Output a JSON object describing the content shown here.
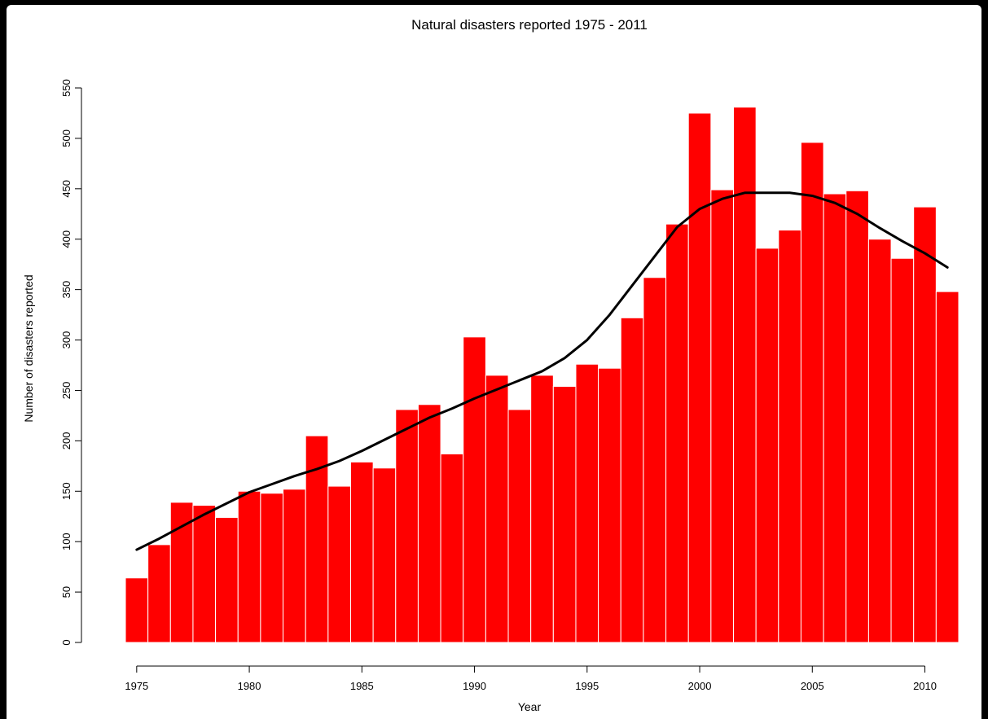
{
  "chart_data": {
    "type": "bar",
    "title": "Natural disasters reported 1975 - 2011",
    "xlabel": "Year",
    "ylabel": "Number of disasters reported",
    "x_ticks": [
      "1975",
      "1980",
      "1985",
      "1990",
      "1995",
      "2000",
      "2005",
      "2010"
    ],
    "y_ticks": [
      "0",
      "50",
      "100",
      "150",
      "200",
      "250",
      "300",
      "350",
      "400",
      "450",
      "500",
      "550"
    ],
    "xlim": [
      1974.5,
      2011.5
    ],
    "ylim": [
      0,
      550
    ],
    "grid": false,
    "bar_color": "#ff0000",
    "line_color": "#000000",
    "categories": [
      1975,
      1976,
      1977,
      1978,
      1979,
      1980,
      1981,
      1982,
      1983,
      1984,
      1985,
      1986,
      1987,
      1988,
      1989,
      1990,
      1991,
      1992,
      1993,
      1994,
      1995,
      1996,
      1997,
      1998,
      1999,
      2000,
      2001,
      2002,
      2003,
      2004,
      2005,
      2006,
      2007,
      2008,
      2009,
      2010,
      2011
    ],
    "values": [
      64,
      97,
      139,
      136,
      124,
      150,
      148,
      152,
      205,
      155,
      179,
      173,
      231,
      236,
      187,
      303,
      265,
      231,
      265,
      254,
      276,
      272,
      322,
      362,
      415,
      525,
      449,
      531,
      391,
      409,
      496,
      445,
      448,
      400,
      381,
      432,
      348
    ],
    "trend": {
      "x": [
        1975,
        1976,
        1977,
        1978,
        1979,
        1980,
        1981,
        1982,
        1983,
        1984,
        1985,
        1986,
        1987,
        1988,
        1989,
        1990,
        1991,
        1992,
        1993,
        1994,
        1995,
        1996,
        1997,
        1998,
        1999,
        2000,
        2001,
        2002,
        2003,
        2004,
        2005,
        2006,
        2007,
        2008,
        2009,
        2010,
        2011
      ],
      "y": [
        92,
        103,
        115,
        127,
        138,
        149,
        157,
        165,
        172,
        180,
        190,
        201,
        212,
        223,
        232,
        242,
        251,
        260,
        269,
        282,
        300,
        325,
        354,
        383,
        412,
        430,
        440,
        446,
        446,
        446,
        443,
        436,
        425,
        411,
        398,
        386,
        372
      ]
    }
  }
}
